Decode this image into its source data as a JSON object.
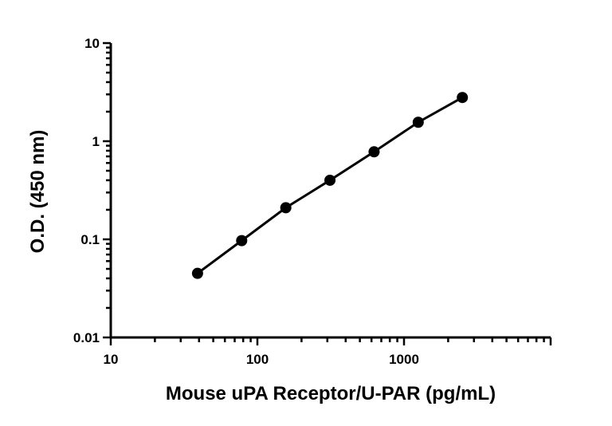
{
  "chart_data": {
    "type": "line",
    "xlabel": "Mouse uPA Receptor/U-PAR (pg/mL)",
    "ylabel": "O.D. (450 nm)",
    "xscale": "log",
    "yscale": "log",
    "xlim": [
      10,
      10000
    ],
    "ylim": [
      0.01,
      10
    ],
    "xticks": [
      10,
      100,
      1000
    ],
    "xtick_labels": [
      "10",
      "100",
      "1000"
    ],
    "yticks": [
      0.01,
      0.1,
      1,
      10
    ],
    "ytick_labels": [
      "0.01",
      "0.1",
      "1",
      "10"
    ],
    "grid": false,
    "markers": "filled-circle",
    "color": "#000000",
    "series": [
      {
        "x": [
          39.06,
          78.13,
          156.25,
          312.5,
          625,
          1250,
          2500
        ],
        "y": [
          0.045,
          0.097,
          0.21,
          0.4,
          0.78,
          1.56,
          2.79
        ]
      }
    ]
  }
}
